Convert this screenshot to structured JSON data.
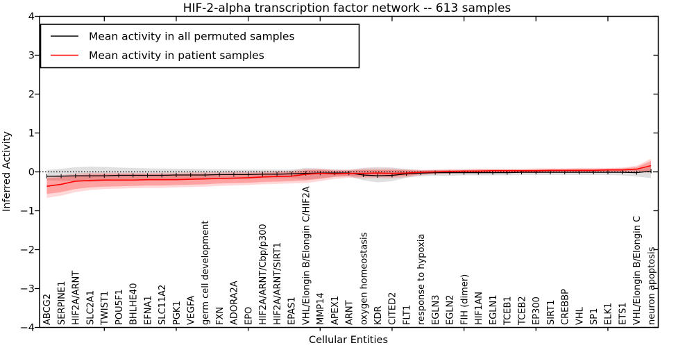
{
  "figure": {
    "title": "HIF-2-alpha transcription factor network -- 613 samples",
    "xlabel": "Cellular Entities",
    "ylabel": "Inferred Activity"
  },
  "chart_data": {
    "type": "line",
    "title": "HIF-2-alpha transcription factor network -- 613 samples",
    "xlabel": "Cellular Entities",
    "ylabel": "Inferred Activity",
    "ylim": [
      -4,
      4
    ],
    "yticks": [
      4,
      3,
      2,
      1,
      0,
      -1,
      -2,
      -3,
      -4
    ],
    "x_major_tick_positions": [
      5,
      10,
      15,
      20,
      25,
      30,
      35,
      40
    ],
    "grid": false,
    "legend_position": "upper left",
    "zero_line": {
      "y": 0,
      "style": "dotted",
      "color": "#000000"
    },
    "colors": {
      "permuted_line": "#000000",
      "patient_line": "#ff0000",
      "permuted_band": "rgba(0,0,0,0.12)",
      "patient_band_outer": "rgba(255,0,0,0.15)",
      "patient_band_inner": "rgba(255,0,0,0.25)"
    },
    "categories": [
      "ABCG2",
      "SERPINE1",
      "HIF2A/ARNT",
      "SLC2A1",
      "TWIST1",
      "POU5F1",
      "BHLHE40",
      "EFNA1",
      "SLC11A2",
      "PGK1",
      "VEGFA",
      "germ cell development",
      "FXN",
      "ADORA2A",
      "EPO",
      "HIF2A/ARNT/Cbp/p300",
      "HIF2A/ARNT/SIRT1",
      "EPAS1",
      "VHL/Elongin B/Elongin C/HIF2A",
      "MMP14",
      "APEX1",
      "ARNT",
      "oxygen homeostasis",
      "KDR",
      "CITED2",
      "FLT1",
      "response to hypoxia",
      "EGLN3",
      "EGLN2",
      "FIH (dimer)",
      "HIF1AN",
      "EGLN1",
      "TCEB1",
      "TCEB2",
      "EP300",
      "SIRT1",
      "CREBBP",
      "VHL",
      "SP1",
      "ELK1",
      "ETS1",
      "VHL/Elongin B/Elongin C",
      "neuron apoptosis"
    ],
    "series": [
      {
        "name": "Mean activity in all permuted samples",
        "color": "#000000",
        "values": [
          -0.11,
          -0.11,
          -0.1,
          -0.1,
          -0.1,
          -0.09,
          -0.09,
          -0.09,
          -0.09,
          -0.08,
          -0.08,
          -0.08,
          -0.07,
          -0.07,
          -0.07,
          -0.06,
          -0.06,
          -0.05,
          -0.04,
          -0.03,
          -0.03,
          -0.03,
          -0.08,
          -0.1,
          -0.09,
          -0.05,
          -0.03,
          -0.02,
          -0.02,
          -0.02,
          -0.02,
          -0.02,
          -0.02,
          -0.01,
          -0.01,
          -0.01,
          -0.01,
          -0.01,
          -0.01,
          -0.01,
          -0.01,
          -0.02,
          0.02
        ],
        "band_lo": [
          -0.22,
          -0.23,
          -0.25,
          -0.26,
          -0.24,
          -0.23,
          -0.22,
          -0.22,
          -0.22,
          -0.21,
          -0.21,
          -0.2,
          -0.19,
          -0.19,
          -0.18,
          -0.17,
          -0.17,
          -0.16,
          -0.2,
          -0.16,
          -0.12,
          -0.11,
          -0.22,
          -0.27,
          -0.24,
          -0.15,
          -0.11,
          -0.1,
          -0.1,
          -0.09,
          -0.09,
          -0.09,
          -0.09,
          -0.08,
          -0.08,
          -0.08,
          -0.08,
          -0.08,
          -0.08,
          -0.08,
          -0.09,
          -0.12,
          -0.16
        ],
        "band_hi": [
          0.05,
          0.08,
          0.12,
          0.14,
          0.13,
          0.11,
          0.1,
          0.09,
          0.09,
          0.08,
          0.08,
          0.07,
          0.07,
          0.06,
          0.06,
          0.06,
          0.06,
          0.06,
          0.1,
          0.08,
          0.06,
          0.05,
          0.1,
          0.13,
          0.11,
          0.07,
          0.05,
          0.05,
          0.05,
          0.05,
          0.05,
          0.05,
          0.05,
          0.05,
          0.05,
          0.05,
          0.05,
          0.05,
          0.05,
          0.06,
          0.06,
          0.09,
          0.12
        ]
      },
      {
        "name": "Mean activity in patient samples",
        "color": "#ff0000",
        "values": [
          -0.37,
          -0.32,
          -0.24,
          -0.22,
          -0.21,
          -0.21,
          -0.21,
          -0.2,
          -0.2,
          -0.2,
          -0.19,
          -0.18,
          -0.17,
          -0.16,
          -0.15,
          -0.13,
          -0.12,
          -0.11,
          -0.06,
          -0.04,
          -0.05,
          -0.04,
          -0.04,
          -0.03,
          -0.04,
          -0.03,
          -0.01,
          0.0,
          0.01,
          0.02,
          0.02,
          0.03,
          0.03,
          0.03,
          0.03,
          0.04,
          0.04,
          0.04,
          0.04,
          0.05,
          0.05,
          0.07,
          0.16
        ],
        "band_inner_lo": [
          -0.57,
          -0.52,
          -0.44,
          -0.4,
          -0.38,
          -0.37,
          -0.36,
          -0.35,
          -0.35,
          -0.34,
          -0.33,
          -0.32,
          -0.3,
          -0.29,
          -0.28,
          -0.26,
          -0.25,
          -0.24,
          -0.22,
          -0.18,
          -0.13,
          -0.11,
          -0.13,
          -0.12,
          -0.13,
          -0.1,
          -0.06,
          -0.04,
          -0.03,
          -0.02,
          -0.02,
          -0.01,
          -0.01,
          -0.01,
          -0.01,
          0.0,
          0.0,
          0.0,
          0.0,
          0.01,
          0.01,
          0.01,
          0.02
        ],
        "band_inner_hi": [
          -0.16,
          -0.14,
          -0.09,
          -0.07,
          -0.06,
          -0.06,
          -0.06,
          -0.06,
          -0.06,
          -0.06,
          -0.05,
          -0.05,
          -0.05,
          -0.04,
          -0.04,
          -0.03,
          -0.02,
          -0.01,
          0.04,
          0.05,
          0.03,
          0.03,
          0.05,
          0.05,
          0.05,
          0.04,
          0.03,
          0.04,
          0.05,
          0.05,
          0.06,
          0.06,
          0.06,
          0.06,
          0.07,
          0.07,
          0.07,
          0.08,
          0.08,
          0.08,
          0.09,
          0.12,
          0.28
        ],
        "band_outer_lo": [
          -0.67,
          -0.61,
          -0.52,
          -0.47,
          -0.44,
          -0.43,
          -0.42,
          -0.41,
          -0.41,
          -0.4,
          -0.39,
          -0.38,
          -0.36,
          -0.35,
          -0.34,
          -0.32,
          -0.31,
          -0.3,
          -0.29,
          -0.24,
          -0.18,
          -0.15,
          -0.17,
          -0.16,
          -0.17,
          -0.14,
          -0.09,
          -0.06,
          -0.05,
          -0.04,
          -0.04,
          -0.03,
          -0.03,
          -0.03,
          -0.03,
          -0.02,
          -0.02,
          -0.02,
          -0.02,
          -0.01,
          -0.01,
          -0.02,
          -0.02
        ],
        "band_outer_hi": [
          -0.1,
          -0.08,
          -0.04,
          -0.02,
          -0.02,
          -0.02,
          -0.02,
          -0.02,
          -0.02,
          -0.02,
          -0.01,
          -0.01,
          -0.01,
          0.0,
          0.0,
          0.01,
          0.02,
          0.03,
          0.08,
          0.09,
          0.06,
          0.06,
          0.09,
          0.09,
          0.09,
          0.07,
          0.05,
          0.06,
          0.07,
          0.07,
          0.08,
          0.08,
          0.08,
          0.08,
          0.09,
          0.09,
          0.09,
          0.1,
          0.1,
          0.1,
          0.11,
          0.16,
          0.34
        ]
      }
    ]
  }
}
